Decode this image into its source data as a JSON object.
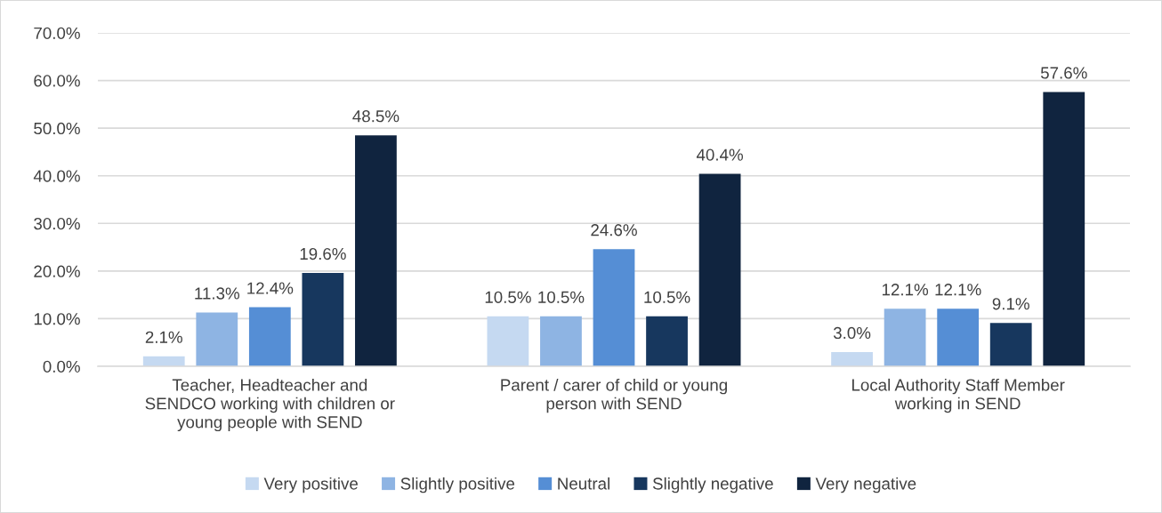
{
  "chart_data": {
    "type": "bar",
    "categories": [
      "Teacher, Headteacher and\nSENDCO working with children or\nyoung people with SEND",
      "Parent / carer of child or young\nperson with SEND",
      "Local Authority Staff Member\nworking in SEND"
    ],
    "series": [
      {
        "name": "Very positive",
        "color": "#c5d9f1",
        "values": [
          2.1,
          10.5,
          3.0
        ],
        "value_labels": [
          "2.1%",
          "10.5%",
          "3.0%"
        ]
      },
      {
        "name": "Slightly positive",
        "color": "#8eb4e3",
        "values": [
          11.3,
          10.5,
          12.1
        ],
        "value_labels": [
          "11.3%",
          "10.5%",
          "12.1%"
        ]
      },
      {
        "name": "Neutral",
        "color": "#558ed5",
        "values": [
          12.4,
          24.6,
          12.1
        ],
        "value_labels": [
          "12.4%",
          "24.6%",
          "12.1%"
        ]
      },
      {
        "name": "Slightly negative",
        "color": "#17375e",
        "values": [
          19.6,
          10.5,
          9.1
        ],
        "value_labels": [
          "19.6%",
          "10.5%",
          "9.1%"
        ]
      },
      {
        "name": "Very negative",
        "color": "#10243f",
        "values": [
          48.5,
          40.4,
          57.6
        ],
        "value_labels": [
          "48.5%",
          "40.4%",
          "57.6%"
        ]
      }
    ],
    "ylim": [
      0,
      70
    ],
    "yticks": [
      {
        "value": 0,
        "label": "0.0%"
      },
      {
        "value": 10,
        "label": "10.0%"
      },
      {
        "value": 20,
        "label": "20.0%"
      },
      {
        "value": 30,
        "label": "30.0%"
      },
      {
        "value": 40,
        "label": "40.0%"
      },
      {
        "value": 50,
        "label": "50.0%"
      },
      {
        "value": 60,
        "label": "60.0%"
      },
      {
        "value": 70,
        "label": "70.0%"
      }
    ],
    "grid": "y",
    "legend": "bottom"
  }
}
